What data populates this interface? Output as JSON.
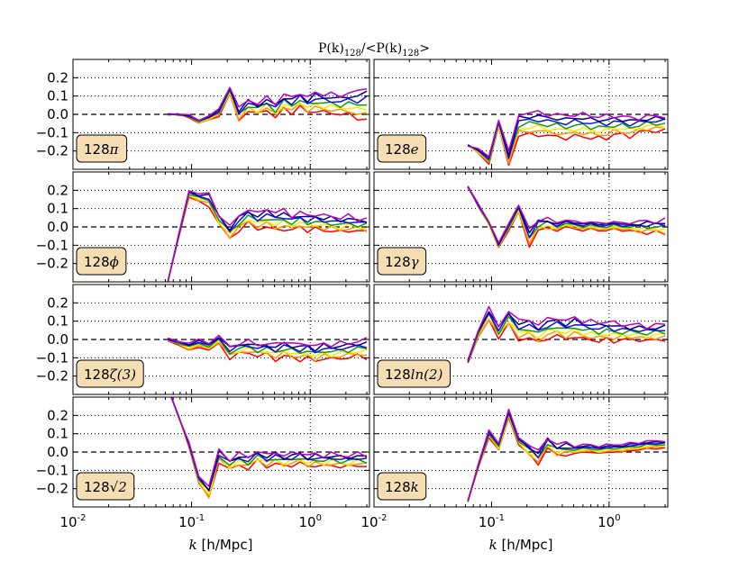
{
  "chart_data": {
    "type": "line",
    "title_parts": [
      "P(k)",
      "128",
      "/<P(k)",
      "128",
      ">"
    ],
    "xlabel_k": "k",
    "xlabel_unit": " [h/Mpc]",
    "xscale": "log",
    "xlim": [
      0.01,
      3.16
    ],
    "ylim": [
      -0.3,
      0.3
    ],
    "yticks": [
      -0.2,
      -0.1,
      0.0,
      0.1,
      0.2
    ],
    "ytick_labels": [
      "−0.2",
      "−0.1",
      "0.0",
      "0.1",
      "0.2"
    ],
    "xtick_base": "10",
    "xtick_exponents": [
      "-2",
      "-1",
      "0"
    ],
    "xtick_values": [
      0.01,
      0.1,
      1.0
    ],
    "reference_line_y": 0.0,
    "reference_line_x": 1.0,
    "series_colors": [
      "#ff0000",
      "#ff9900",
      "#eeee00",
      "#119911",
      "#1111dd",
      "#000099",
      "#bb00bb"
    ],
    "k": [
      0.063,
      0.077,
      0.095,
      0.115,
      0.14,
      0.17,
      0.21,
      0.25,
      0.3,
      0.36,
      0.43,
      0.51,
      0.6,
      0.7,
      0.82,
      0.95,
      1.1,
      1.3,
      1.5,
      1.8,
      2.1,
      2.5,
      3.0
    ],
    "panels": [
      {
        "label_prefix": "128",
        "label_math": "π",
        "base": [
          0.0,
          0.0,
          -0.01,
          -0.04,
          -0.02,
          0.01,
          0.13,
          0.0,
          0.05,
          0.03,
          0.06,
          0.02,
          0.07,
          0.05,
          0.08,
          0.05,
          0.07,
          0.06,
          0.06,
          0.05,
          0.06,
          0.05,
          0.06
        ],
        "spread": [
          0.0,
          0.0,
          0.005,
          0.01,
          0.01,
          0.02,
          0.02,
          0.03,
          0.03,
          0.03,
          0.03,
          0.04,
          0.04,
          0.04,
          0.04,
          0.04,
          0.05,
          0.05,
          0.05,
          0.05,
          0.06,
          0.07,
          0.09
        ]
      },
      {
        "label_prefix": "128",
        "label_math": "e",
        "base": [
          -0.17,
          -0.2,
          -0.25,
          -0.05,
          -0.24,
          -0.06,
          -0.05,
          -0.05,
          -0.06,
          -0.06,
          -0.07,
          -0.06,
          -0.06,
          -0.07,
          -0.07,
          -0.07,
          -0.06,
          -0.06,
          -0.07,
          -0.06,
          -0.05,
          -0.05,
          -0.05
        ],
        "spread": [
          0.0,
          0.01,
          0.02,
          0.02,
          0.03,
          0.06,
          0.06,
          0.06,
          0.06,
          0.06,
          0.06,
          0.06,
          0.06,
          0.06,
          0.06,
          0.06,
          0.05,
          0.05,
          0.05,
          0.04,
          0.04,
          0.04,
          0.04
        ]
      },
      {
        "label_prefix": "128",
        "label_math": "ϕ",
        "base": [
          -0.3,
          -0.06,
          0.18,
          0.16,
          0.15,
          0.04,
          -0.03,
          0.02,
          0.06,
          0.03,
          0.05,
          0.03,
          0.04,
          0.02,
          0.04,
          0.02,
          0.03,
          0.02,
          0.02,
          0.01,
          0.02,
          0.01,
          0.01
        ],
        "spread": [
          0.0,
          0.005,
          0.02,
          0.02,
          0.03,
          0.03,
          0.03,
          0.04,
          0.04,
          0.04,
          0.05,
          0.05,
          0.05,
          0.04,
          0.04,
          0.04,
          0.04,
          0.04,
          0.04,
          0.04,
          0.04,
          0.03,
          0.04
        ]
      },
      {
        "label_prefix": "128",
        "label_math": "γ",
        "base": [
          0.22,
          0.12,
          0.02,
          -0.1,
          0.0,
          0.1,
          -0.06,
          0.01,
          0.02,
          0.0,
          0.02,
          0.01,
          0.0,
          0.01,
          0.0,
          0.0,
          0.01,
          0.0,
          0.0,
          0.0,
          0.0,
          0.0,
          0.0
        ],
        "spread": [
          0.0,
          0.005,
          0.01,
          0.01,
          0.02,
          0.02,
          0.04,
          0.03,
          0.03,
          0.02,
          0.02,
          0.02,
          0.02,
          0.02,
          0.02,
          0.02,
          0.02,
          0.02,
          0.02,
          0.03,
          0.03,
          0.03,
          0.04
        ]
      },
      {
        "label_prefix": "128",
        "label_math": "ζ(3)",
        "base": [
          0.0,
          -0.02,
          -0.04,
          -0.02,
          -0.04,
          0.0,
          -0.07,
          -0.05,
          -0.04,
          -0.06,
          -0.05,
          -0.07,
          -0.05,
          -0.06,
          -0.07,
          -0.06,
          -0.08,
          -0.06,
          -0.07,
          -0.06,
          -0.06,
          -0.05,
          -0.05
        ],
        "spread": [
          0.005,
          0.01,
          0.02,
          0.02,
          0.02,
          0.02,
          0.03,
          0.03,
          0.03,
          0.03,
          0.03,
          0.04,
          0.04,
          0.04,
          0.04,
          0.04,
          0.04,
          0.04,
          0.04,
          0.04,
          0.04,
          0.04,
          0.05
        ]
      },
      {
        "label_prefix": "128",
        "label_math": "ln(2)",
        "base": [
          -0.12,
          0.03,
          0.14,
          0.04,
          0.12,
          0.05,
          0.06,
          0.03,
          0.06,
          0.07,
          0.05,
          0.07,
          0.05,
          0.05,
          0.04,
          0.05,
          0.04,
          0.04,
          0.04,
          0.04,
          0.03,
          0.04,
          0.04
        ],
        "spread": [
          0.005,
          0.02,
          0.03,
          0.03,
          0.04,
          0.05,
          0.05,
          0.05,
          0.05,
          0.05,
          0.05,
          0.05,
          0.05,
          0.05,
          0.05,
          0.05,
          0.05,
          0.04,
          0.04,
          0.04,
          0.04,
          0.04,
          0.04
        ]
      },
      {
        "label_prefix": "128",
        "label_math": "√2",
        "base": [
          0.35,
          0.2,
          0.04,
          -0.15,
          -0.22,
          -0.02,
          -0.07,
          -0.04,
          -0.06,
          -0.02,
          -0.05,
          -0.03,
          -0.05,
          -0.04,
          -0.03,
          -0.05,
          -0.04,
          -0.05,
          -0.04,
          -0.05,
          -0.05,
          -0.04,
          -0.05
        ],
        "spread": [
          0.0,
          0.0,
          0.01,
          0.02,
          0.03,
          0.03,
          0.03,
          0.03,
          0.03,
          0.03,
          0.03,
          0.03,
          0.03,
          0.03,
          0.03,
          0.03,
          0.03,
          0.03,
          0.03,
          0.03,
          0.03,
          0.03,
          0.03
        ]
      },
      {
        "label_prefix": "128",
        "label_math": "k",
        "base": [
          -0.27,
          -0.08,
          0.1,
          0.03,
          0.21,
          0.06,
          0.01,
          -0.03,
          0.05,
          0.01,
          0.02,
          0.01,
          0.02,
          0.02,
          0.01,
          0.02,
          0.02,
          0.02,
          0.03,
          0.03,
          0.04,
          0.04,
          0.04
        ],
        "spread": [
          0.005,
          0.01,
          0.02,
          0.02,
          0.02,
          0.02,
          0.03,
          0.03,
          0.03,
          0.03,
          0.03,
          0.02,
          0.02,
          0.02,
          0.02,
          0.02,
          0.02,
          0.02,
          0.02,
          0.02,
          0.02,
          0.02,
          0.02
        ]
      }
    ]
  }
}
